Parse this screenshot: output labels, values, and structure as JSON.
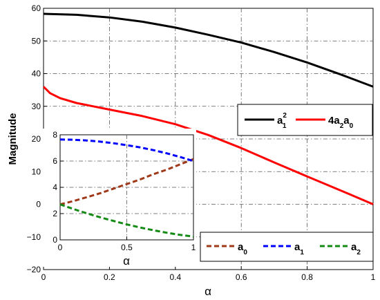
{
  "chart_data": [
    {
      "type": "line",
      "title": "",
      "xlabel": "α",
      "ylabel": "Magnitude",
      "xlim": [
        0,
        1
      ],
      "ylim": [
        -20,
        60
      ],
      "xticks": [
        "0",
        "0.2",
        "0.4",
        "0.6",
        "0.8",
        "1"
      ],
      "yticks": [
        "−20",
        "−10",
        "0",
        "10",
        "20",
        "30",
        "40",
        "50",
        "60"
      ],
      "grid": true,
      "legend_position": "right",
      "series": [
        {
          "name": "a₁²",
          "legend_base": "a",
          "legend_sub": "1",
          "legend_sup": "2",
          "color": "#000000",
          "style": "solid",
          "x": [
            0,
            0.1,
            0.2,
            0.3,
            0.4,
            0.5,
            0.6,
            0.7,
            0.8,
            0.9,
            1
          ],
          "y": [
            58.3,
            58.0,
            57.2,
            55.9,
            54.1,
            51.9,
            49.5,
            46.6,
            43.4,
            39.8,
            36.0
          ]
        },
        {
          "name": "4a₂a₀",
          "legend_base": "4a",
          "legend_mid": "2",
          "legend_base2": "a",
          "legend_sub": "0",
          "color": "#ff0000",
          "style": "solid",
          "x": [
            0,
            0.02,
            0.05,
            0.1,
            0.2,
            0.3,
            0.4,
            0.5,
            0.6,
            0.7,
            0.8,
            0.9,
            1
          ],
          "y": [
            36.0,
            34.0,
            32.5,
            31.0,
            29.0,
            27.0,
            24.5,
            21.2,
            17.2,
            12.8,
            8.5,
            4.3,
            0.0
          ]
        }
      ]
    },
    {
      "type": "line",
      "title": "",
      "xlabel": "α",
      "ylabel": "",
      "xlim": [
        0,
        1
      ],
      "ylim": [
        0,
        8
      ],
      "xticks": [
        "0",
        "0.5",
        "1"
      ],
      "yticks": [
        "0",
        "2",
        "4",
        "6",
        "8"
      ],
      "grid": true,
      "legend_position": "bottom-right",
      "series": [
        {
          "name": "a₀",
          "legend_base": "a",
          "legend_sub": "0",
          "color": "#a0391a",
          "style": "dashed",
          "x": [
            0,
            0.1,
            0.2,
            0.3,
            0.4,
            0.5,
            0.6,
            0.7,
            0.8,
            0.9,
            1
          ],
          "y": [
            2.7,
            2.95,
            3.25,
            3.55,
            3.9,
            4.25,
            4.6,
            5.0,
            5.35,
            5.75,
            6.15
          ]
        },
        {
          "name": "a₁",
          "legend_base": "a",
          "legend_sub": "1",
          "color": "#0000ff",
          "style": "dashed",
          "x": [
            0,
            0.1,
            0.2,
            0.3,
            0.4,
            0.5,
            0.6,
            0.7,
            0.8,
            0.9,
            1
          ],
          "y": [
            7.64,
            7.62,
            7.57,
            7.48,
            7.36,
            7.21,
            7.04,
            6.83,
            6.59,
            6.31,
            6.0
          ]
        },
        {
          "name": "a₂",
          "legend_base": "a",
          "legend_sub": "2",
          "color": "#138a13",
          "style": "dashed",
          "x": [
            0,
            0.1,
            0.2,
            0.3,
            0.4,
            0.5,
            0.6,
            0.7,
            0.8,
            0.9,
            1
          ],
          "y": [
            2.7,
            2.35,
            2.02,
            1.72,
            1.44,
            1.18,
            0.94,
            0.73,
            0.54,
            0.38,
            0.25
          ]
        }
      ]
    }
  ]
}
